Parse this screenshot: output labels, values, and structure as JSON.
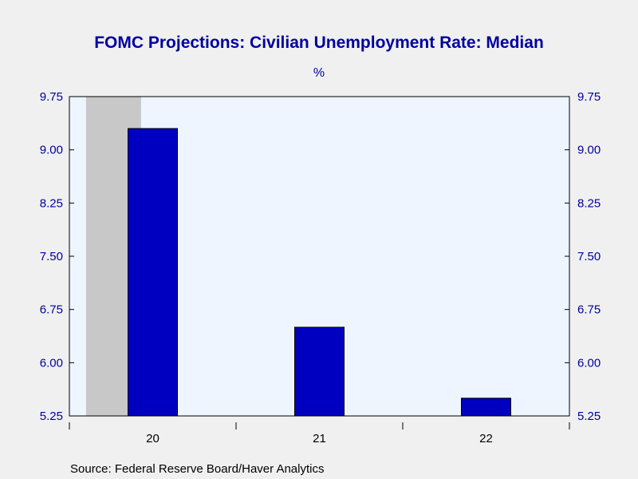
{
  "chart_data": {
    "type": "bar",
    "title": "FOMC Projections: Civilian Unemployment Rate: Median",
    "units": "%",
    "categories": [
      "20",
      "21",
      "22"
    ],
    "values": [
      9.3,
      6.5,
      5.5
    ],
    "ylim": [
      5.25,
      9.75
    ],
    "yticks": [
      "9.75",
      "9.00",
      "8.25",
      "7.50",
      "6.75",
      "6.00",
      "5.25"
    ],
    "y_axis_sides": "both",
    "bar_color": "#0000c0",
    "plot_background": "#eef5ff",
    "recession_shading": {
      "label": "recession",
      "color": "#c8c8c8",
      "x_start": 19.6,
      "x_end": 19.93
    },
    "source": "Source:  Federal Reserve Board/Haver Analytics"
  }
}
